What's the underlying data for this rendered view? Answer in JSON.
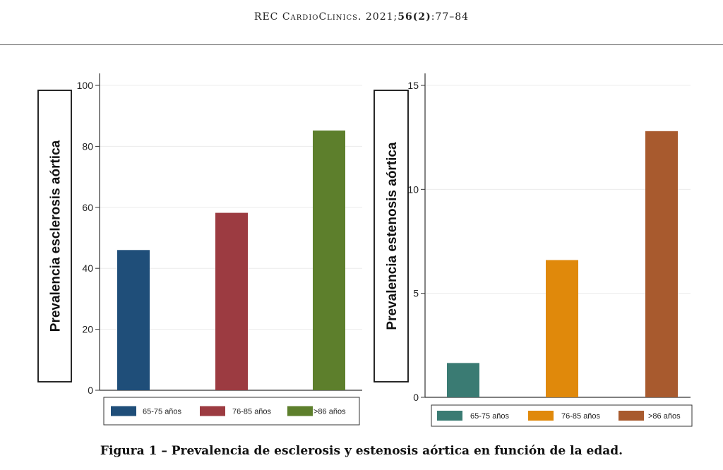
{
  "header": {
    "journal": "REC CardioClinics",
    "year": ". 2021;",
    "volume_issue": "56(2)",
    "pages": ":77–84"
  },
  "caption": "Figura 1 – Prevalencia de esclerosis y estenosis aórtica en función de la edad.",
  "chart_data": [
    {
      "type": "bar",
      "title": "",
      "xlabel": "",
      "ylabel": "Prevalencia esclerosis aórtica",
      "categories": [
        "65-75 años",
        "76-85 años",
        ">86 años"
      ],
      "values": [
        46,
        58.2,
        85.2
      ],
      "colors": [
        "#1f4e79",
        "#9c3b41",
        "#5d7f2c"
      ],
      "ylim": [
        0,
        100
      ],
      "yticks": [
        "0",
        "20",
        "40",
        "60",
        "80",
        "100"
      ],
      "legend": "bottom"
    },
    {
      "type": "bar",
      "title": "",
      "xlabel": "",
      "ylabel": "Prevalencia estenosis aórtica",
      "categories": [
        "65-75 años",
        "76-85 años",
        ">86 años"
      ],
      "values": [
        1.65,
        6.6,
        12.8
      ],
      "colors": [
        "#3a7b73",
        "#e0890b",
        "#a85a2e"
      ],
      "ylim": [
        0,
        15
      ],
      "yticks": [
        "0",
        "5",
        "10",
        "15"
      ],
      "legend": "bottom"
    }
  ]
}
